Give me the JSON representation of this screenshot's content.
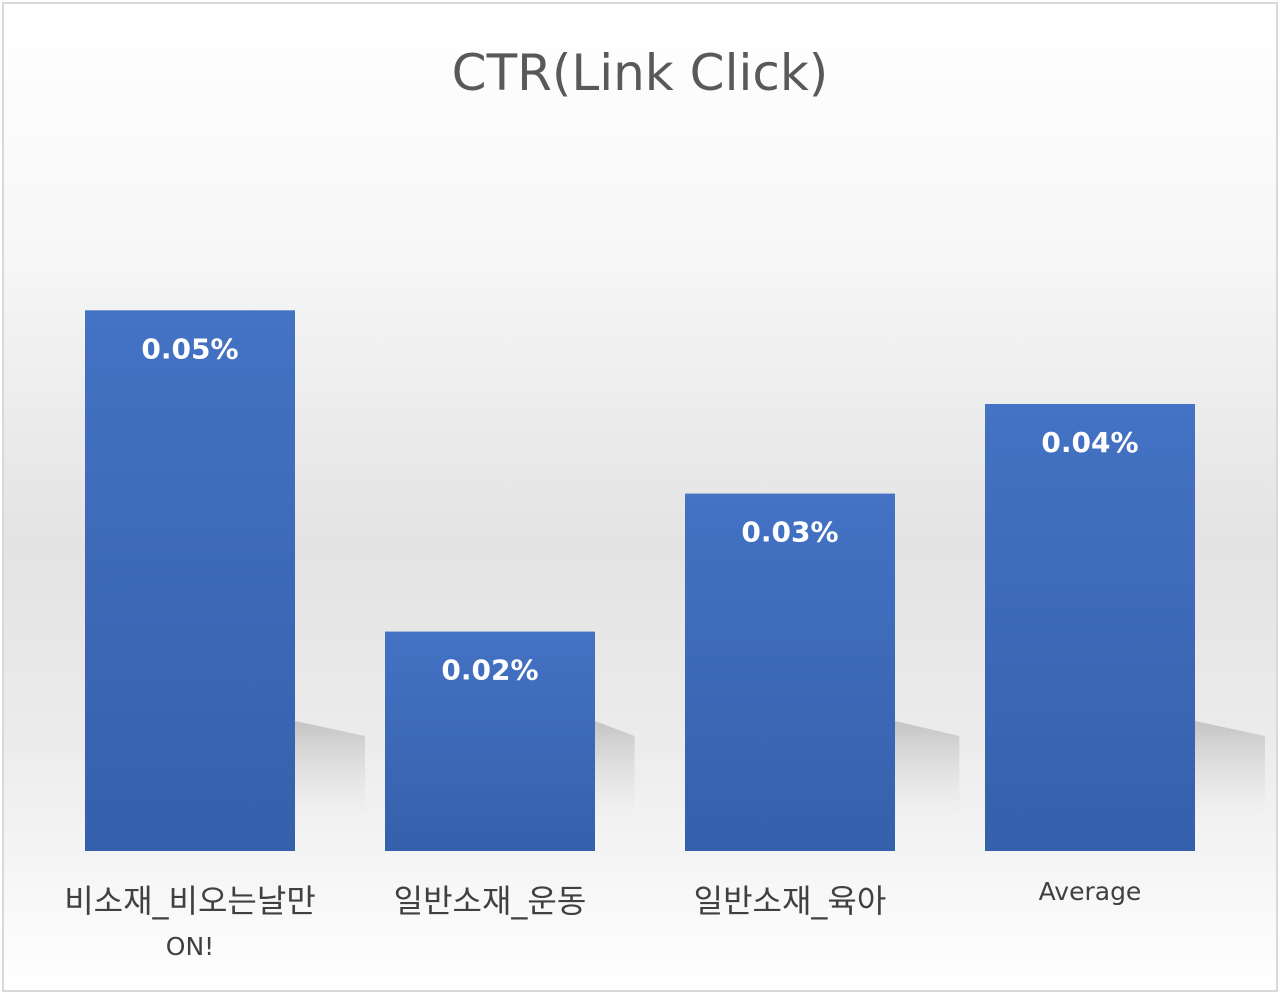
{
  "chart_data": {
    "type": "bar",
    "title": "CTR(Link Click)",
    "xlabel": "",
    "ylabel": "",
    "categories": [
      [
        "비소재_비오는날만",
        "ON!"
      ],
      [
        "일반소재_운동"
      ],
      [
        "일반소재_육아"
      ],
      [
        "Average"
      ]
    ],
    "values": [
      0.0525,
      0.0213,
      0.0347,
      0.0434
    ],
    "data_labels": [
      "0.05%",
      "0.02%",
      "0.03%",
      "0.04%"
    ],
    "ylim": [
      0,
      0.07
    ],
    "grid": false,
    "legend": "none",
    "colors": {
      "bar_top": "#4472c4",
      "bar_bottom": "#3560ab",
      "title": "#595959",
      "category_label": "#404040",
      "data_label": "#ffffff",
      "border": "#d9d9d9"
    }
  }
}
